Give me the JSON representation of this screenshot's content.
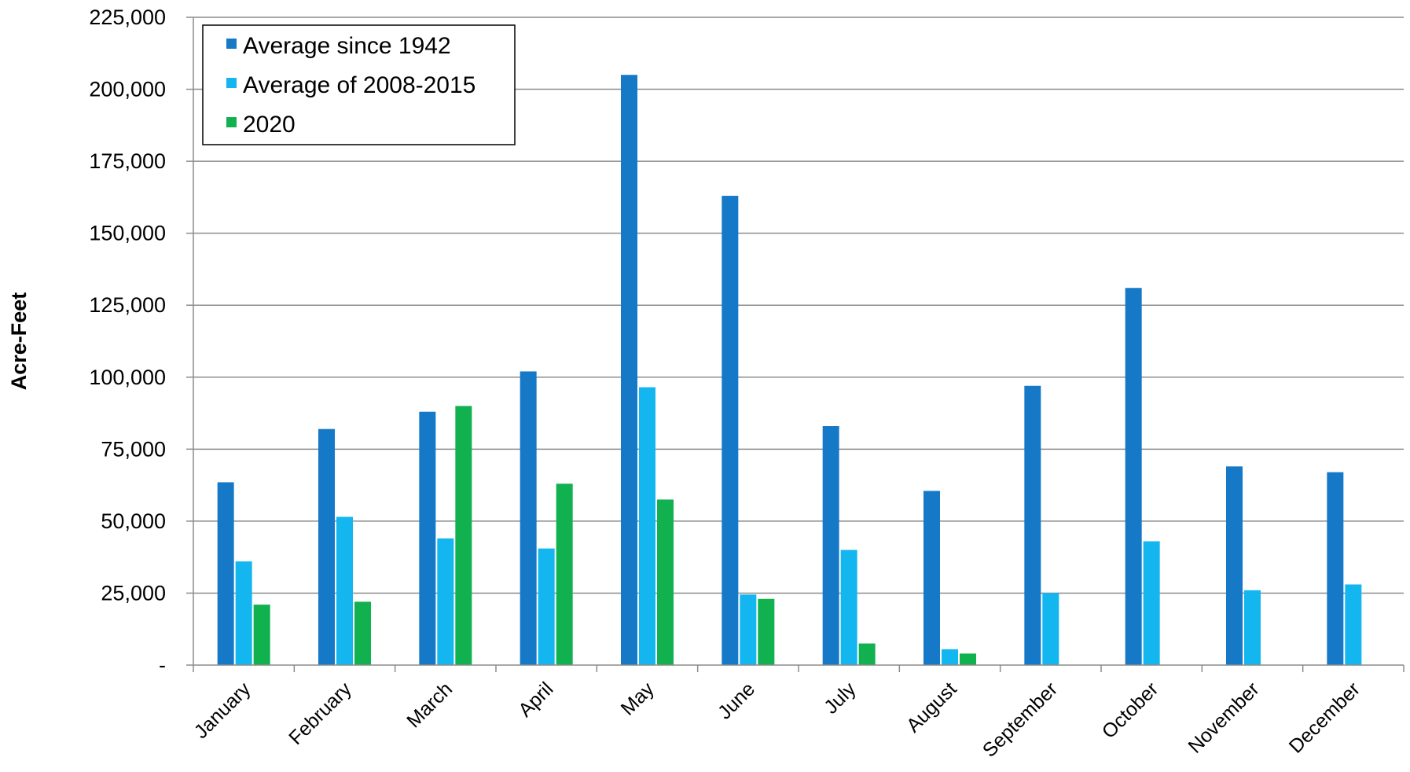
{
  "chart_data": {
    "type": "bar",
    "ylabel": "Acre-Feet",
    "xlabel": "",
    "ylim": [
      0,
      225000
    ],
    "ytick_values": [
      0,
      25000,
      50000,
      75000,
      100000,
      125000,
      150000,
      175000,
      200000,
      225000
    ],
    "ytick_labels": [
      "-",
      "25,000",
      "50,000",
      "75,000",
      "100,000",
      "125,000",
      "150,000",
      "175,000",
      "200,000",
      "225,000"
    ],
    "grid": "horizontal",
    "legend_position": "top-left",
    "categories": [
      "January",
      "February",
      "March",
      "April",
      "May",
      "June",
      "July",
      "August",
      "September",
      "October",
      "November",
      "December"
    ],
    "series": [
      {
        "name": "Average since 1942",
        "color": "#1679c8",
        "values": [
          63500,
          82000,
          88000,
          102000,
          205000,
          163000,
          83000,
          60500,
          97000,
          131000,
          69000,
          67000
        ]
      },
      {
        "name": "Average of 2008-2015",
        "color": "#14b6f0",
        "values": [
          36000,
          51500,
          44000,
          40500,
          96500,
          24500,
          40000,
          5500,
          25000,
          43000,
          26000,
          28000
        ]
      },
      {
        "name": "2020",
        "color": "#12b150",
        "values": [
          21000,
          22000,
          90000,
          63000,
          57500,
          23000,
          7500,
          4000,
          null,
          null,
          null,
          null
        ]
      }
    ]
  }
}
